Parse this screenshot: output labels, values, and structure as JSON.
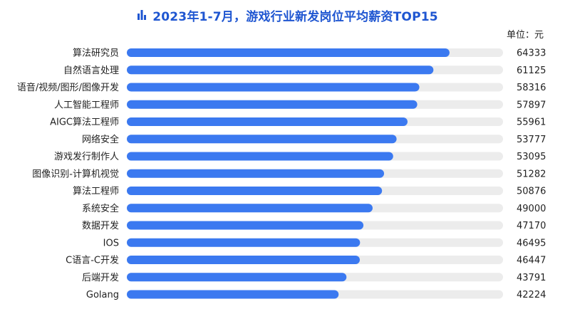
{
  "title": "2023年1-7月，游戏行业新发岗位平均薪资TOP15",
  "unit_label": "单位：元",
  "colors": {
    "title": "#1f56d1",
    "bar": "#3b79f0",
    "track": "#ececec",
    "text": "#222222"
  },
  "icons": {
    "title": "bar-chart-icon"
  },
  "chart_data": {
    "type": "bar",
    "orientation": "horizontal",
    "title": "2023年1-7月，游戏行业新发岗位平均薪资TOP15",
    "unit": "单位：元",
    "xlim": [
      0,
      75000
    ],
    "grid": false,
    "legend": "none",
    "categories": [
      "算法研究员",
      "自然语言处理",
      "语音/视频/图形/图像开发",
      "人工智能工程师",
      "AIGC算法工程师",
      "网络安全",
      "游戏发行制作人",
      "图像识别-计算机视觉",
      "算法工程师",
      "系统安全",
      "数据开发",
      "IOS",
      "C语言-C开发",
      "后端开发",
      "Golang"
    ],
    "values": [
      64333,
      61125,
      58316,
      57897,
      55961,
      53777,
      53095,
      51282,
      50876,
      49000,
      47170,
      46495,
      46447,
      43791,
      42224
    ]
  }
}
